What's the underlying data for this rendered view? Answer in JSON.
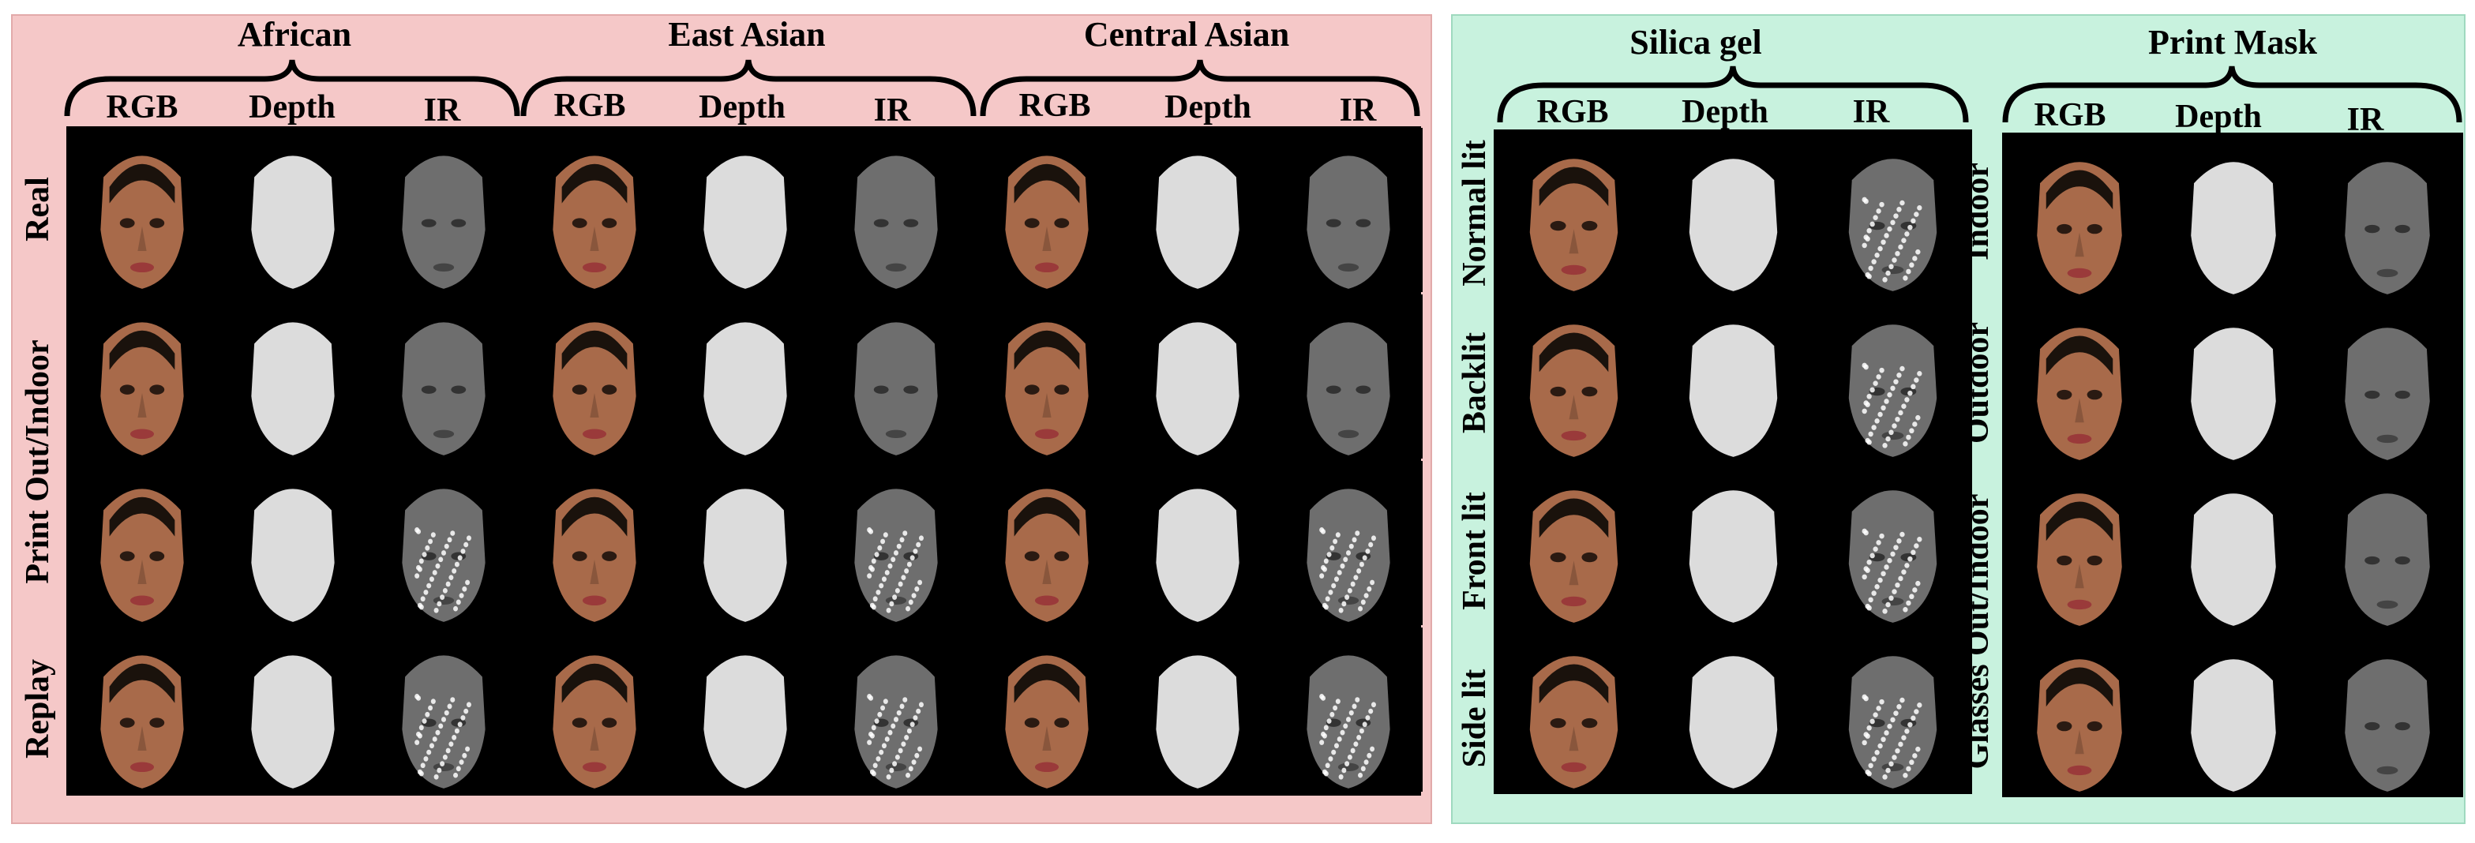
{
  "left_panel": {
    "groups": [
      {
        "title": "African",
        "columns": [
          "RGB",
          "Depth",
          "IR"
        ]
      },
      {
        "title": "East Asian",
        "columns": [
          "RGB",
          "Depth",
          "IR"
        ]
      },
      {
        "title": "Central Asian",
        "columns": [
          "RGB",
          "Depth",
          "IR"
        ]
      }
    ],
    "rows": [
      "Real",
      "Print Out/Indoor",
      "Replay"
    ],
    "color": "#f5c8c8"
  },
  "right_panel": {
    "groups": [
      {
        "title": "Silica gel",
        "columns": [
          "RGB",
          "Depth",
          "IR"
        ],
        "rows": [
          "Normal lit",
          "Backlit",
          "Front lit",
          "Side lit"
        ]
      },
      {
        "title": "Print Mask",
        "columns": [
          "RGB",
          "Depth",
          "IR"
        ],
        "rows": [
          "Indoor",
          "Outdoor",
          "Glasses Out/Indoor"
        ]
      }
    ],
    "color": "#c8f2de"
  },
  "modality_styles": {
    "RGB": {
      "face": "#a86a4a",
      "hair": "#1a120c",
      "lips": "#9a3a3a"
    },
    "Depth": {
      "face": "#dcdcdc"
    },
    "IR": {
      "face": "#6e6e6e"
    }
  }
}
